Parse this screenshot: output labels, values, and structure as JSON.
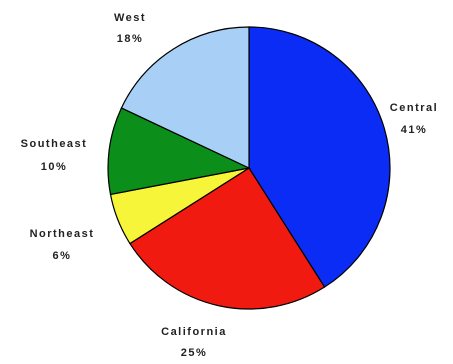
{
  "chart_data": {
    "type": "pie",
    "title": "",
    "slices": [
      {
        "label": "Central",
        "value": 41,
        "value_label": "41%",
        "color": "#0a2cf5"
      },
      {
        "label": "California",
        "value": 25,
        "value_label": "25%",
        "color": "#f01a10"
      },
      {
        "label": "Northeast",
        "value": 6,
        "value_label": "6%",
        "color": "#f7f53a"
      },
      {
        "label": "Southeast",
        "value": 10,
        "value_label": "10%",
        "color": "#0b8f1a"
      },
      {
        "label": "West",
        "value": 18,
        "value_label": "18%",
        "color": "#a8cff5"
      }
    ],
    "start_angle_deg": 0,
    "direction": "clockwise"
  }
}
